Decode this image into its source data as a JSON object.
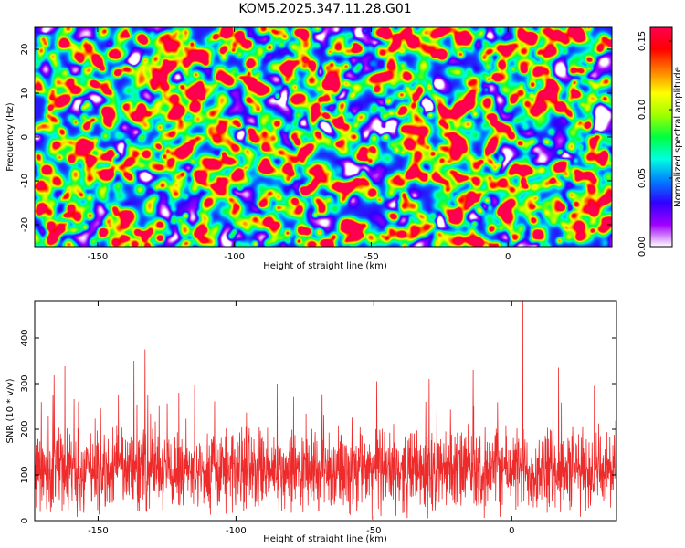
{
  "title": "KOM5.2025.347.11.28.G01",
  "colors": {
    "snr_line": "#ee2a2a",
    "frame": "#000000",
    "background": "#ffffff"
  },
  "chart_data": [
    {
      "type": "heatmap",
      "title": "KOM5.2025.347.11.28.G01",
      "xlabel": "Height of straight line (km)",
      "ylabel": "Frequency (Hz)",
      "xlim": [
        -173,
        38
      ],
      "ylim": [
        -25,
        25
      ],
      "xticks": [
        -150,
        -100,
        -50,
        0
      ],
      "xtick_labels": [
        "-150",
        "-100",
        "-50",
        "0"
      ],
      "yticks": [
        -20,
        -10,
        0,
        10,
        20
      ],
      "ytick_labels": [
        "-20",
        "-10",
        "0",
        "10",
        "20"
      ],
      "colorbar": {
        "label": "Normalized spectral amplitude",
        "range": [
          0,
          0.16
        ],
        "ticks": [
          0,
          0.05,
          0.1,
          0.15
        ],
        "tick_labels": [
          "0.00",
          "0.05",
          "0.10",
          "0.15"
        ],
        "colormap": [
          "#ffffff",
          "#a000ff",
          "#3000ff",
          "#0080ff",
          "#00ffe0",
          "#00ff40",
          "#a0ff00",
          "#ffff00",
          "#ff8000",
          "#ff0000",
          "#ff0050"
        ]
      },
      "peaks": [
        {
          "x": -3,
          "y": 2.5,
          "amplitude": 0.16
        },
        {
          "x": -107,
          "y": 23,
          "amplitude": 0.15
        },
        {
          "x": 20,
          "y": -16,
          "amplitude": 0.14
        },
        {
          "x": -59,
          "y": 2.5,
          "amplitude": 0.12
        },
        {
          "x": -88,
          "y": -19,
          "amplitude": 0.11
        },
        {
          "x": -5,
          "y": 14,
          "amplitude": 0.1
        },
        {
          "x": -133,
          "y": -22,
          "amplitude": 0.1
        },
        {
          "x": 22,
          "y": 5.5,
          "amplitude": 0.09
        },
        {
          "x": 11,
          "y": 8,
          "amplitude": 0.09
        },
        {
          "x": -22,
          "y": -12,
          "amplitude": 0.08
        }
      ]
    },
    {
      "type": "line",
      "xlabel": "Height of straight line (km)",
      "ylabel": "SNR (10 * v/v)",
      "xlim": [
        -173,
        38
      ],
      "ylim": [
        0,
        480
      ],
      "xticks": [
        -150,
        -100,
        -50,
        0
      ],
      "xtick_labels": [
        "-150",
        "-100",
        "-50",
        "0"
      ],
      "yticks": [
        0,
        100,
        200,
        300,
        400
      ],
      "ytick_labels": [
        "0",
        "100",
        "200",
        "300",
        "400"
      ],
      "series": [
        {
          "name": "SNR",
          "sample_count": 2100,
          "baseline": 110,
          "typical_max": 220
        }
      ],
      "spikes": [
        {
          "x": 4,
          "y": 480
        },
        {
          "x": -133,
          "y": 375
        },
        {
          "x": -137,
          "y": 350
        },
        {
          "x": -162,
          "y": 338
        },
        {
          "x": 15,
          "y": 340
        },
        {
          "x": 17,
          "y": 335
        },
        {
          "x": -14,
          "y": 330
        },
        {
          "x": -166,
          "y": 318
        },
        {
          "x": -30,
          "y": 310
        },
        {
          "x": -49,
          "y": 305
        },
        {
          "x": -85,
          "y": 300
        },
        {
          "x": -115,
          "y": 298
        },
        {
          "x": 30,
          "y": 295
        }
      ]
    }
  ]
}
